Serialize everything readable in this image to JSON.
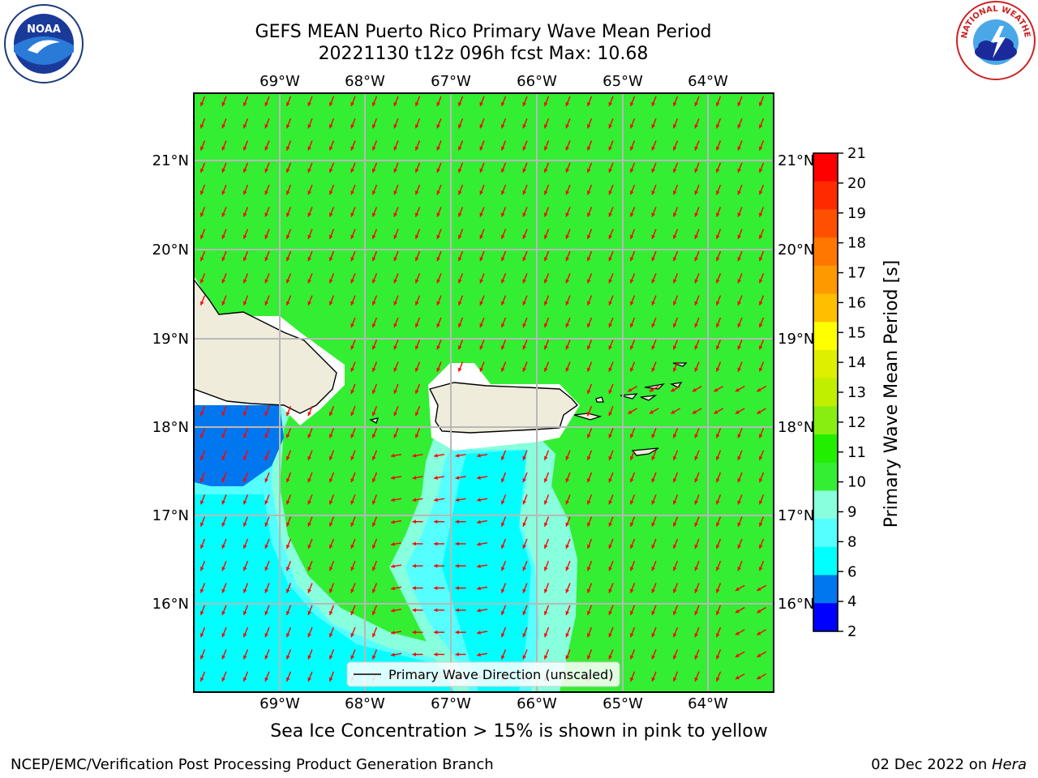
{
  "title": {
    "line1": "GEFS MEAN Puerto Rico Primary Wave Mean Period",
    "line2": "20221130 t12z 096h fcst   Max: 10.68"
  },
  "logos": {
    "left": {
      "icon": "noaa-logo-icon",
      "text": "NOAA"
    },
    "right": {
      "icon": "nws-logo-icon",
      "text": "NATIONAL WEATHER SERVICE"
    }
  },
  "map": {
    "lon_labels": [
      "69°W",
      "68°W",
      "67°W",
      "66°W",
      "65°W",
      "64°W"
    ],
    "lat_labels": [
      "21°N",
      "20°N",
      "19°N",
      "18°N",
      "17°N",
      "16°N"
    ],
    "legend_label": "Primary Wave Direction (unscaled)",
    "arrow_color": "#ff0000",
    "background_color": "#33ee33"
  },
  "colorbar": {
    "label": "Primary Wave Mean Period [s]",
    "ticks": [
      "21",
      "20",
      "19",
      "18",
      "17",
      "16",
      "15",
      "14",
      "13",
      "12",
      "11",
      "10",
      "9",
      "8",
      "6",
      "4",
      "2"
    ],
    "colors": [
      "#ff0000",
      "#ff2a00",
      "#ff5000",
      "#ff7700",
      "#ff9900",
      "#ffbf00",
      "#ffff00",
      "#dfef00",
      "#c0ef00",
      "#88ee11",
      "#22ee00",
      "#33ee33",
      "#88ffdd",
      "#55ffff",
      "#00ffff",
      "#0077ee",
      "#0000ff"
    ]
  },
  "note": "Sea Ice Concentration > 15% is shown in pink to yellow",
  "footer": {
    "left": "NCEP/EMC/Verification Post Processing Product Generation Branch",
    "right_prefix": "02 Dec 2022 on ",
    "right_host": "Hera"
  }
}
